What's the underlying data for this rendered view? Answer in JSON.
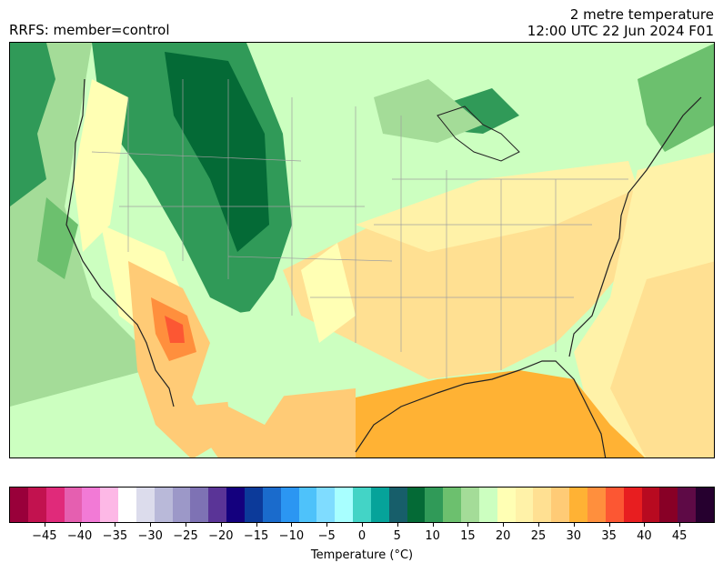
{
  "header": {
    "left_title": "RRFS: member=control",
    "right_title_line1": "2 metre temperature",
    "right_title_line2": "12:00 UTC 22 Jun 2024 F01"
  },
  "colorbar": {
    "label": "Temperature (°C)",
    "range": [
      -50,
      50
    ],
    "step": 2.5,
    "tick_values": [
      -45,
      -40,
      -35,
      -30,
      -25,
      -20,
      -15,
      -10,
      -5,
      0,
      5,
      10,
      15,
      20,
      25,
      30,
      35,
      40,
      45
    ],
    "tick_labels": [
      "−45",
      "−40",
      "−35",
      "−30",
      "−25",
      "−20",
      "−15",
      "−10",
      "−5",
      "0",
      "5",
      "10",
      "15",
      "20",
      "25",
      "30",
      "35",
      "40",
      "45"
    ],
    "colors": [
      "#99003a",
      "#c2124f",
      "#e02a7a",
      "#e55fb0",
      "#f27ad6",
      "#fdb8e6",
      "#ffffff",
      "#dcdcec",
      "#b9b9d9",
      "#9c98c8",
      "#7e72b4",
      "#5a3497",
      "#14007e",
      "#0c3a9a",
      "#1a6bcc",
      "#2b96f2",
      "#4ec2fa",
      "#7fdcff",
      "#a8ffff",
      "#43d4c6",
      "#06a39a",
      "#175e6a",
      "#046a36",
      "#309a58",
      "#6cc06e",
      "#a4dc98",
      "#ccffc0",
      "#ffffb4",
      "#fff2a8",
      "#ffe092",
      "#ffcb76",
      "#ffb234",
      "#ff8f3d",
      "#fc5733",
      "#e81e20",
      "#b80a20",
      "#880026",
      "#5e0a46",
      "#26002f"
    ]
  },
  "map": {
    "region": "CONUS",
    "colors": {
      "ocean_pacific": "#a4dc98",
      "ocean_far": "#ccffc0",
      "mountains": "#309a58",
      "high_peaks": "#046a36",
      "plains": "#ffffb4",
      "south": "#ffcb76",
      "gulf": "#ffb234",
      "desert": "#ff8f3d",
      "coast_line": "#222222",
      "state_line": "#a0a0a0"
    }
  }
}
